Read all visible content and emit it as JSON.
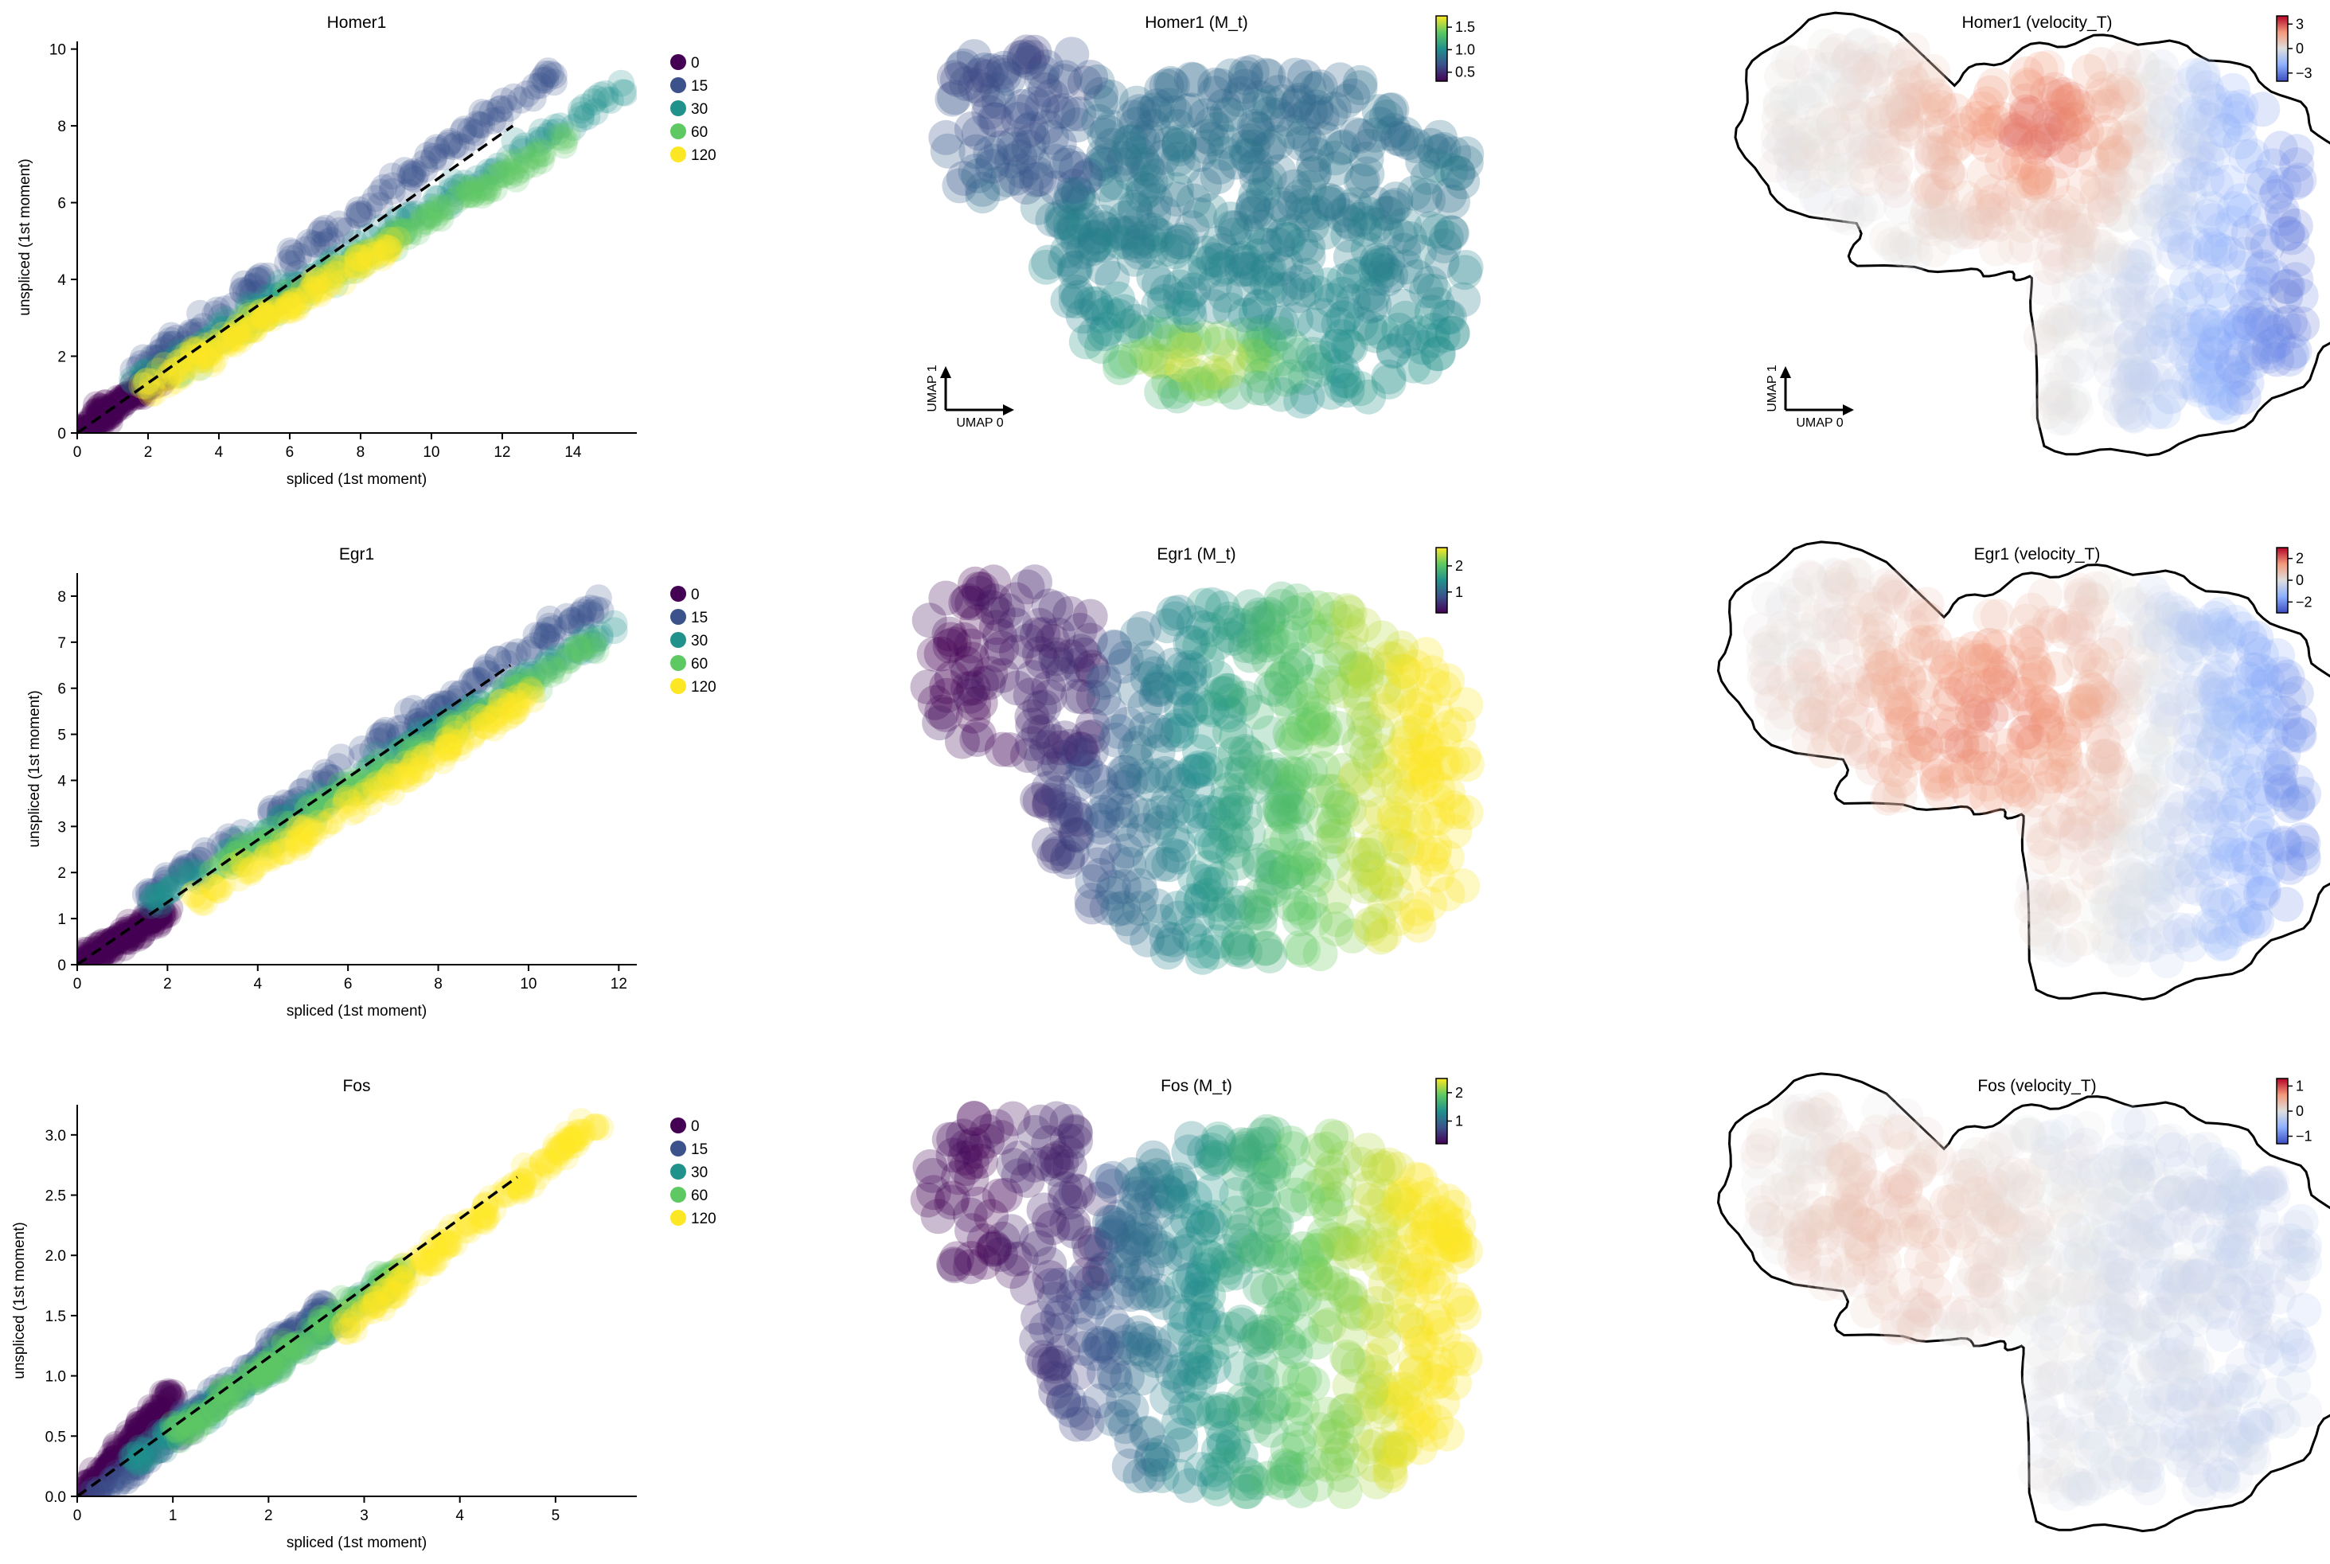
{
  "figure": {
    "background": "#ffffff"
  },
  "chart_data": [
    {
      "type": "scatter",
      "title": "Homer1",
      "xlabel": "spliced (1st moment)",
      "ylabel": "unspliced (1st moment)",
      "xlim": [
        0,
        15.8
      ],
      "ylim": [
        0,
        10.2
      ],
      "xticks": [
        "0",
        "2",
        "4",
        "6",
        "8",
        "10",
        "12",
        "14"
      ],
      "yticks": [
        "0",
        "2",
        "4",
        "6",
        "8",
        "10"
      ],
      "legend": {
        "position": "right",
        "entries": [
          {
            "label": "0",
            "color": "#440154"
          },
          {
            "label": "15",
            "color": "#3b528b"
          },
          {
            "label": "30",
            "color": "#21918c"
          },
          {
            "label": "60",
            "color": "#5ec962"
          },
          {
            "label": "120",
            "color": "#fde725"
          }
        ]
      },
      "fit_line": {
        "x": [
          0,
          12.3
        ],
        "y": [
          0,
          8.0
        ],
        "style": "dashed"
      },
      "series": [
        {
          "name": "0",
          "color": "#440154",
          "trend": {
            "x": [
              0,
              2.5
            ],
            "y": [
              0,
              1.6
            ]
          }
        },
        {
          "name": "15",
          "color": "#3b528b",
          "trend": {
            "x": [
              1.5,
              13.5
            ],
            "y": [
              1.5,
              9.4
            ]
          }
        },
        {
          "name": "30",
          "color": "#21918c",
          "trend": {
            "x": [
              1.5,
              15.5
            ],
            "y": [
              1.2,
              9.0
            ]
          }
        },
        {
          "name": "60",
          "color": "#5ec962",
          "trend": {
            "x": [
              2.5,
              14.0
            ],
            "y": [
              1.5,
              7.8
            ]
          }
        },
        {
          "name": "120",
          "color": "#fde725",
          "trend": {
            "x": [
              2.0,
              9.0
            ],
            "y": [
              1.2,
              5.0
            ]
          }
        }
      ]
    },
    {
      "type": "scatter",
      "title": "Egr1",
      "xlabel": "spliced (1st moment)",
      "ylabel": "unspliced (1st moment)",
      "xlim": [
        0,
        12.4
      ],
      "ylim": [
        0,
        8.5
      ],
      "xticks": [
        "0",
        "2",
        "4",
        "6",
        "8",
        "10",
        "12"
      ],
      "yticks": [
        "0",
        "1",
        "2",
        "3",
        "4",
        "5",
        "6",
        "7",
        "8"
      ],
      "legend": {
        "position": "right",
        "entries": [
          {
            "label": "0",
            "color": "#440154"
          },
          {
            "label": "15",
            "color": "#3b528b"
          },
          {
            "label": "30",
            "color": "#21918c"
          },
          {
            "label": "60",
            "color": "#5ec962"
          },
          {
            "label": "120",
            "color": "#fde725"
          }
        ]
      },
      "fit_line": {
        "x": [
          0,
          9.6
        ],
        "y": [
          0,
          6.5
        ],
        "style": "dashed"
      },
      "series": [
        {
          "name": "0",
          "color": "#440154",
          "trend": {
            "x": [
              0,
              2.0
            ],
            "y": [
              0,
              1.2
            ]
          }
        },
        {
          "name": "15",
          "color": "#3b528b",
          "trend": {
            "x": [
              1.5,
              11.8
            ],
            "y": [
              1.5,
              8.0
            ]
          }
        },
        {
          "name": "30",
          "color": "#21918c",
          "trend": {
            "x": [
              1.5,
              12.2
            ],
            "y": [
              1.3,
              7.5
            ]
          }
        },
        {
          "name": "60",
          "color": "#5ec962",
          "trend": {
            "x": [
              3.0,
              11.5
            ],
            "y": [
              2.0,
              7.0
            ]
          }
        },
        {
          "name": "120",
          "color": "#fde725",
          "trend": {
            "x": [
              2.5,
              10.0
            ],
            "y": [
              1.3,
              5.8
            ]
          }
        }
      ]
    },
    {
      "type": "scatter",
      "title": "Fos",
      "xlabel": "spliced (1st moment)",
      "ylabel": "unspliced (1st moment)",
      "xlim": [
        0,
        5.85
      ],
      "ylim": [
        0,
        3.25
      ],
      "xticks": [
        "0",
        "1",
        "2",
        "3",
        "4",
        "5"
      ],
      "yticks": [
        "0.0",
        "0.5",
        "1.0",
        "1.5",
        "2.0",
        "2.5",
        "3.0"
      ],
      "legend": {
        "position": "right",
        "entries": [
          {
            "label": "0",
            "color": "#440154"
          },
          {
            "label": "15",
            "color": "#3b528b"
          },
          {
            "label": "30",
            "color": "#21918c"
          },
          {
            "label": "60",
            "color": "#5ec962"
          },
          {
            "label": "120",
            "color": "#fde725"
          }
        ]
      },
      "fit_line": {
        "x": [
          0,
          4.6
        ],
        "y": [
          0,
          2.65
        ],
        "style": "dashed"
      },
      "series": [
        {
          "name": "0",
          "color": "#440154",
          "trend": {
            "x": [
              0.05,
              1.0
            ],
            "y": [
              0.0,
              0.85
            ]
          }
        },
        {
          "name": "15",
          "color": "#3b528b",
          "trend": {
            "x": [
              0.2,
              2.6
            ],
            "y": [
              0.0,
              1.6
            ]
          }
        },
        {
          "name": "30",
          "color": "#21918c",
          "trend": {
            "x": [
              0.6,
              3.3
            ],
            "y": [
              0.3,
              1.8
            ]
          }
        },
        {
          "name": "60",
          "color": "#5ec962",
          "trend": {
            "x": [
              1.0,
              3.4
            ],
            "y": [
              0.5,
              1.9
            ]
          }
        },
        {
          "name": "120",
          "color": "#fde725",
          "trend": {
            "x": [
              2.8,
              5.4
            ],
            "y": [
              1.4,
              3.1
            ]
          }
        }
      ]
    },
    {
      "type": "scatter",
      "title": "Homer1 (M_t)",
      "xlabel": "UMAP 0",
      "ylabel": "UMAP 1",
      "colormap": "viridis",
      "colorbar": {
        "ticks": [
          "1.5",
          "1.0",
          "0.5"
        ],
        "range": [
          0.3,
          1.75
        ]
      },
      "pattern": "mid values overall, high (yellow) at lower center"
    },
    {
      "type": "scatter",
      "title": "Egr1 (M_t)",
      "xlabel": "",
      "ylabel": "",
      "colormap": "viridis",
      "colorbar": {
        "ticks": [
          "2",
          "1"
        ],
        "range": [
          0.2,
          2.7
        ]
      },
      "pattern": "low (purple) at upper-left lobe, high (yellow) on right body"
    },
    {
      "type": "scatter",
      "title": "Fos (M_t)",
      "xlabel": "",
      "ylabel": "",
      "colormap": "viridis",
      "colorbar": {
        "ticks": [
          "2",
          "1"
        ],
        "range": [
          0.2,
          2.5
        ]
      },
      "pattern": "low (purple) at upper-left lobe, high (yellow) on right body"
    },
    {
      "type": "scatter",
      "title": "Homer1 (velocity_T)",
      "xlabel": "UMAP 0",
      "ylabel": "UMAP 1",
      "colormap": "coolwarm",
      "colorbar": {
        "ticks": [
          "3",
          "0",
          "−3"
        ],
        "range": [
          -4,
          4
        ]
      },
      "pattern": "positive (red) upper center, negative (blue) right"
    },
    {
      "type": "scatter",
      "title": "Egr1 (velocity_T)",
      "xlabel": "",
      "ylabel": "",
      "colormap": "coolwarm",
      "colorbar": {
        "ticks": [
          "2",
          "0",
          "−2"
        ],
        "range": [
          -3,
          3
        ]
      },
      "pattern": "positive (red) center-left, negative (blue) right"
    },
    {
      "type": "scatter",
      "title": "Fos (velocity_T)",
      "xlabel": "",
      "ylabel": "",
      "colormap": "coolwarm",
      "colorbar": {
        "ticks": [
          "1",
          "0",
          "−1"
        ],
        "range": [
          -1.3,
          1.3
        ]
      },
      "pattern": "mild positive (red) left, mild negative (blue) elsewhere"
    }
  ]
}
